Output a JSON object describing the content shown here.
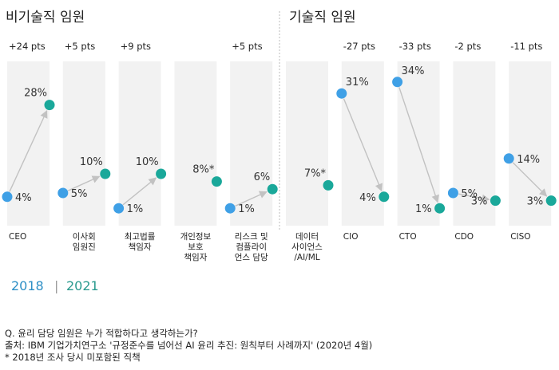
{
  "chart_data": {
    "type": "slope",
    "groups": [
      {
        "title": "비기술직 임원",
        "start": 0,
        "end": 4
      },
      {
        "title": "기술직 임원",
        "start": 5,
        "end": 9
      }
    ],
    "categories": [
      {
        "label": "CEO",
        "v2018": 4,
        "v2021": 28,
        "l2018": "4%",
        "l2021": "28%",
        "delta": "+24 pts"
      },
      {
        "label": "이사회\n임원진",
        "v2018": 5,
        "v2021": 10,
        "l2018": "5%",
        "l2021": "10%",
        "delta": "+5 pts"
      },
      {
        "label": "최고법률\n책임자",
        "v2018": 1,
        "v2021": 10,
        "l2018": "1%",
        "l2021": "10%",
        "delta": "+9 pts"
      },
      {
        "label": "개인정보\n보호\n책임자",
        "v2018": null,
        "v2021": 8,
        "l2018": "",
        "l2021": "8%*",
        "delta": ""
      },
      {
        "label": "리스크 및\n컴플라이\n언스 담당",
        "v2018": 1,
        "v2021": 6,
        "l2018": "1%",
        "l2021": "6%",
        "delta": "+5 pts"
      },
      {
        "label": "데이터\n사이언스\n/AI/ML",
        "v2018": null,
        "v2021": 7,
        "l2018": "",
        "l2021": "7%*",
        "delta": ""
      },
      {
        "label": "CIO",
        "v2018": 31,
        "v2021": 4,
        "l2018": "31%",
        "l2021": "4%",
        "delta": "-27 pts"
      },
      {
        "label": "CTO",
        "v2018": 34,
        "v2021": 1,
        "l2018": "34%",
        "l2021": "1%",
        "delta": "-33 pts"
      },
      {
        "label": "CDO",
        "v2018": 5,
        "v2021": 3,
        "l2018": "5%",
        "l2021": "3%",
        "delta": "-2 pts"
      },
      {
        "label": "CISO",
        "v2018": 14,
        "v2021": 3,
        "l2018": "14%",
        "l2021": "3%",
        "delta": "-11 pts"
      }
    ],
    "legend": {
      "y2018": "2018",
      "y2021": "2021",
      "separator": "|"
    },
    "colors": {
      "y2018": "#3fa0e6",
      "y2021": "#1aa89a",
      "panel": "#f2f2f2",
      "arrow": "#c2c2c2",
      "legend2018": "#2d8fc6",
      "legend2021": "#2a9a8e"
    }
  },
  "footnotes": {
    "question": "Q. 윤리 담당 임원은 누가 적합하다고 생각하는가?",
    "source": "출처: IBM 기업가치연구소 '규정준수를 넘어선 AI 윤리 추진: 원칙부터 사례까지' (2020년 4월)",
    "note": "* 2018년 조사 당시 미포함된 직책"
  }
}
